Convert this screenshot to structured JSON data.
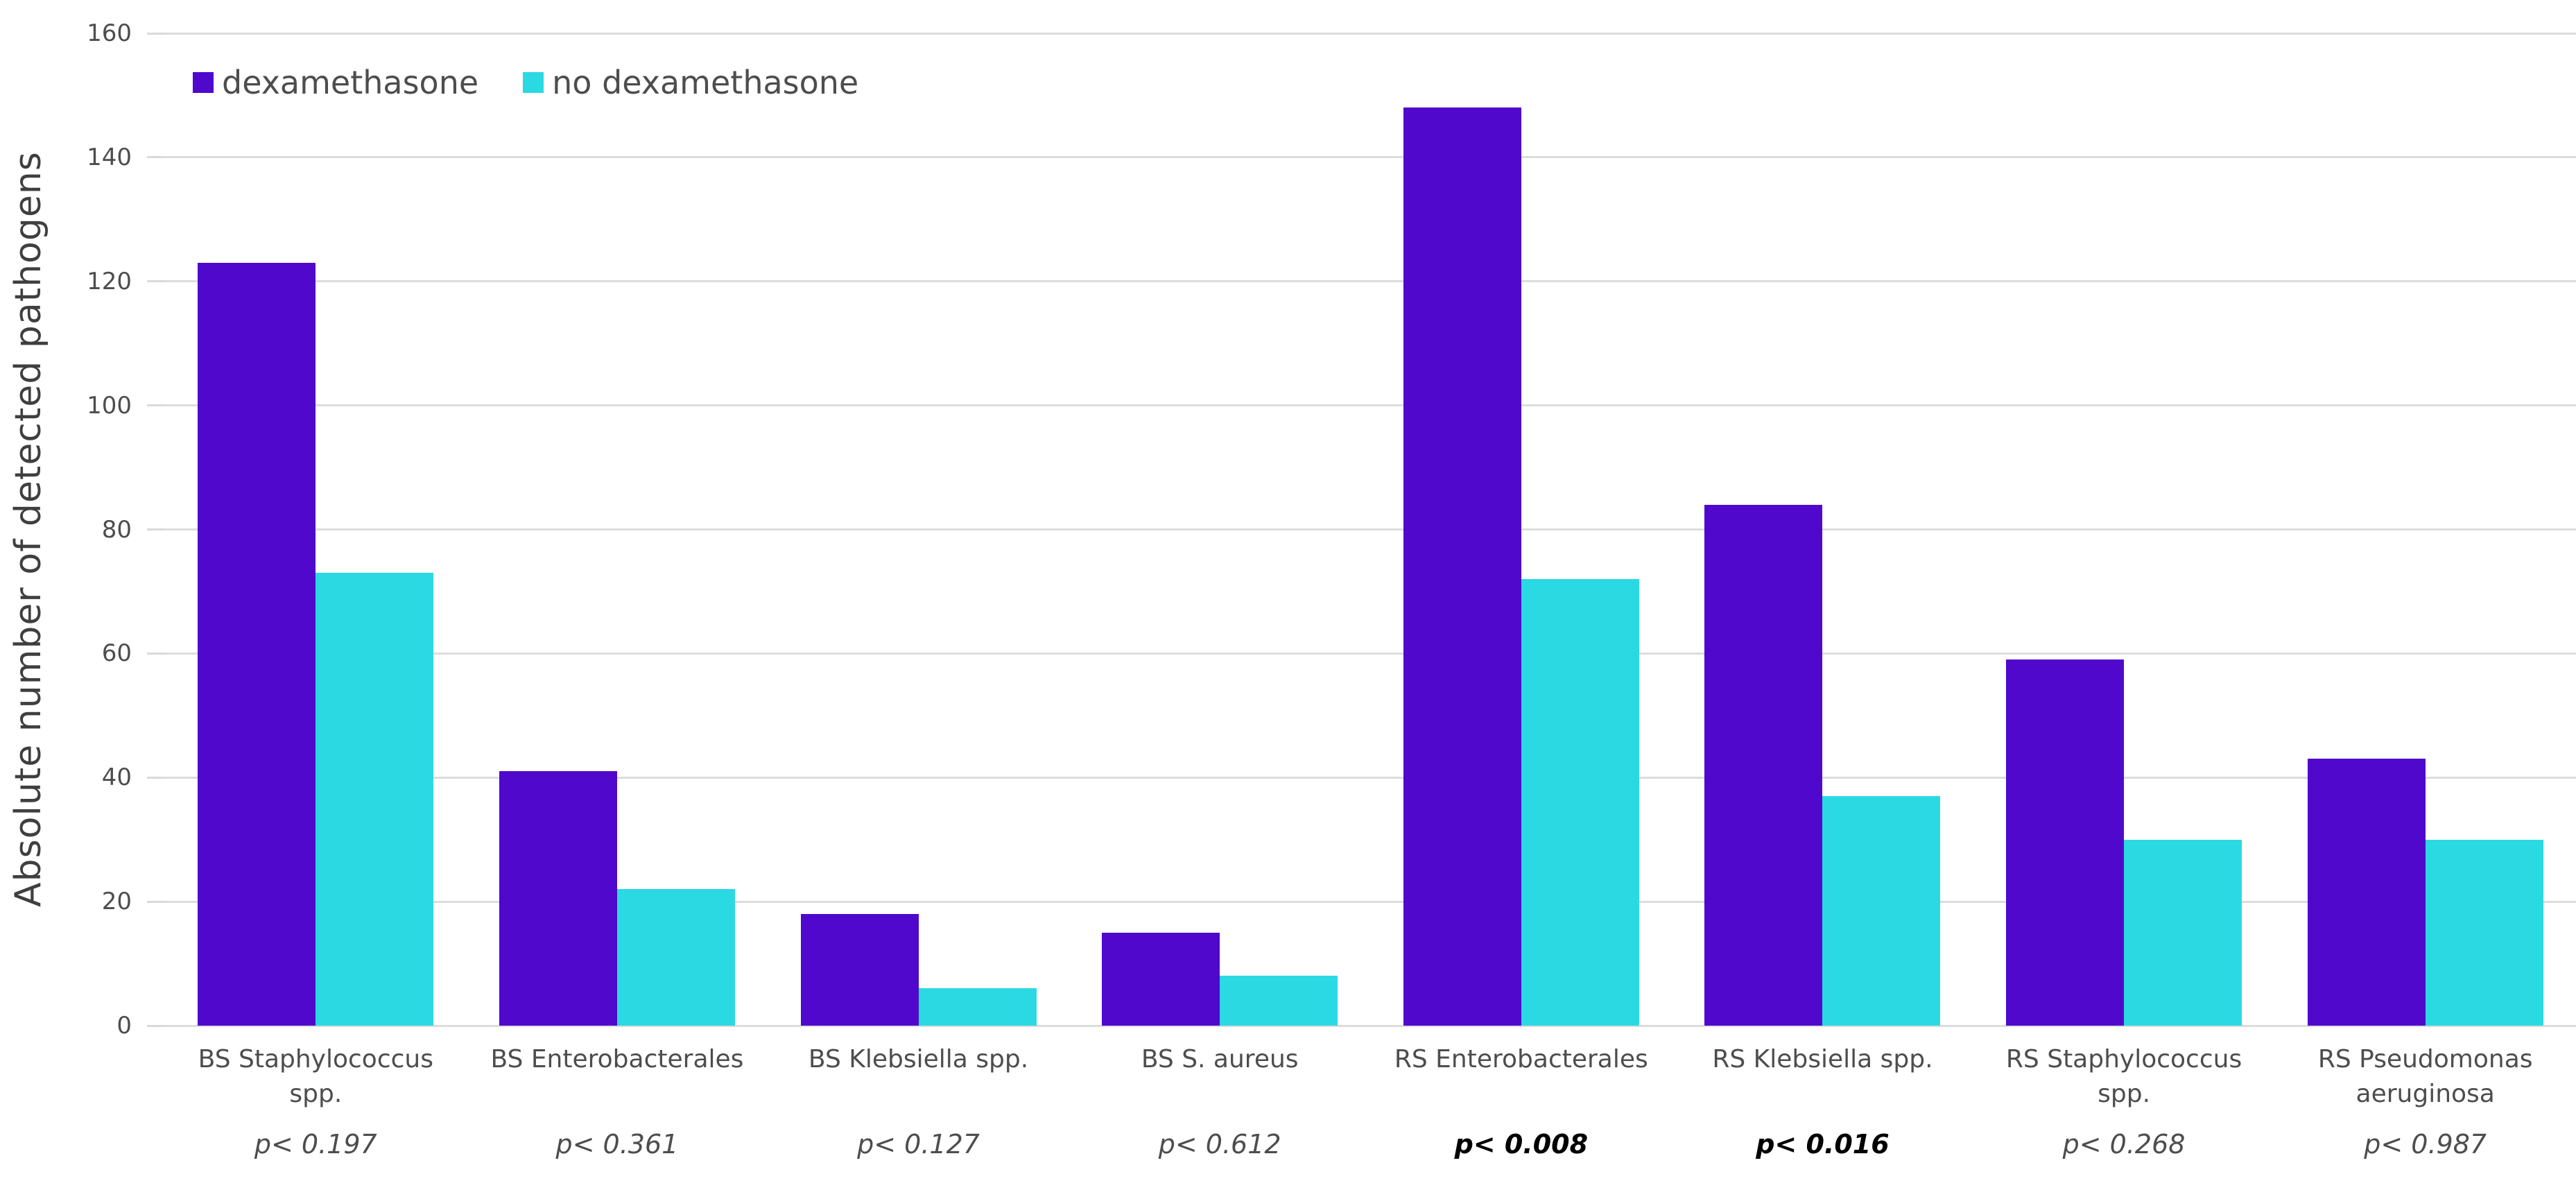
{
  "chart_data": {
    "type": "bar",
    "title": "",
    "xlabel": "",
    "ylabel": "Absolute number of detected pathogens",
    "ylim": [
      0,
      160
    ],
    "yticks": [
      0,
      20,
      40,
      60,
      80,
      100,
      120,
      140,
      160
    ],
    "grid": true,
    "legend_position": "top-left",
    "categories": [
      "BS Staphylococcus spp.",
      "BS Enterobacterales",
      "BS Klebsiella spp.",
      "BS S. aureus",
      "RS Enterobacterales",
      "RS Klebsiella spp.",
      "RS Staphylococcus spp.",
      "RS Pseudomonas aeruginosa"
    ],
    "series": [
      {
        "name": "dexamethasone",
        "color": "#4f08cc",
        "values": [
          123,
          41,
          18,
          15,
          148,
          84,
          59,
          43
        ]
      },
      {
        "name": "no dexamethasone",
        "color": "#2bd9e2",
        "values": [
          73,
          22,
          6,
          8,
          72,
          37,
          30,
          30
        ]
      }
    ],
    "p_values": [
      {
        "label": "p< 0.197",
        "bold": false
      },
      {
        "label": "p< 0.361",
        "bold": false
      },
      {
        "label": "p< 0.127",
        "bold": false
      },
      {
        "label": "p< 0.612",
        "bold": false
      },
      {
        "label": "p< 0.008",
        "bold": true
      },
      {
        "label": "p< 0.016",
        "bold": true
      },
      {
        "label": "p< 0.268",
        "bold": false
      },
      {
        "label": "p< 0.987",
        "bold": false
      }
    ]
  },
  "colors": {
    "gridline": "#dcdcdc",
    "axis_text": "#4d4d4d",
    "y_title_text": "#3f3f3f",
    "p_bold_text": "#000000",
    "background": "#ffffff"
  }
}
